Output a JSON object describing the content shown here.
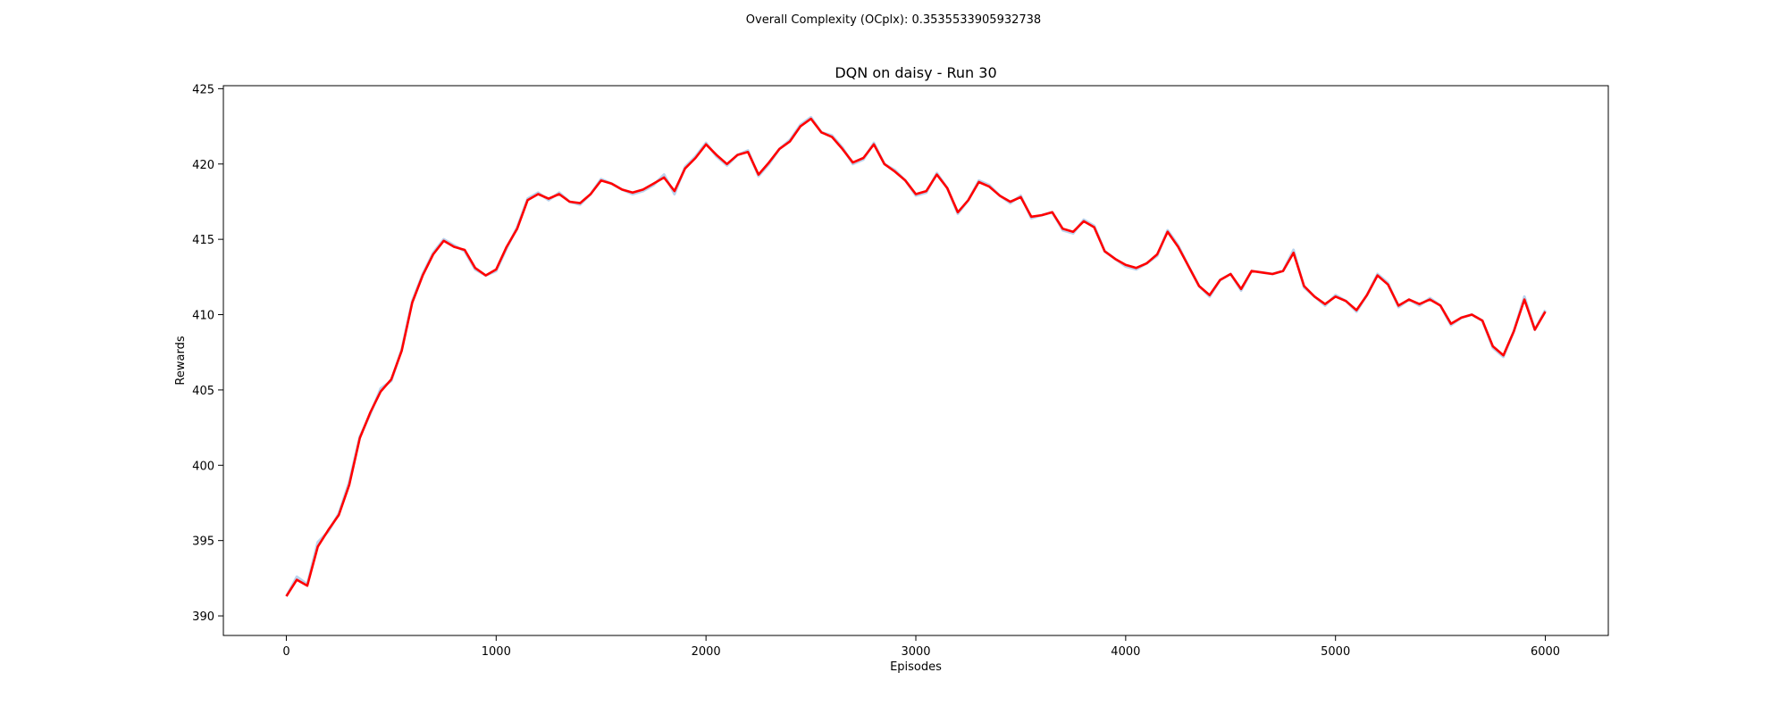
{
  "suptitle": "Overall Complexity (OCplx): 0.3535533905932738",
  "colors": {
    "suptitle": "#ff0000",
    "raw": "#a9c8e8",
    "smooth": "#ff0000",
    "axes": "#000000"
  },
  "chart_data": {
    "type": "line",
    "title": "DQN on daisy - Run 30",
    "xlabel": "Episodes",
    "ylabel": "Rewards",
    "xlim": [
      -300,
      6300
    ],
    "ylim": [
      388.7,
      425.2
    ],
    "xticks": [
      0,
      1000,
      2000,
      3000,
      4000,
      5000,
      6000
    ],
    "yticks": [
      390,
      395,
      400,
      405,
      410,
      415,
      420,
      425
    ],
    "grid": false,
    "series": [
      {
        "style": "raw",
        "x": [
          0,
          50,
          100,
          150,
          200,
          250,
          300,
          350,
          400,
          450,
          500,
          550,
          600,
          650,
          700,
          750,
          800,
          850,
          900,
          950,
          1000,
          1050,
          1100,
          1150,
          1200,
          1250,
          1300,
          1350,
          1400,
          1450,
          1500,
          1550,
          1600,
          1650,
          1700,
          1750,
          1800,
          1850,
          1900,
          1950,
          2000,
          2050,
          2100,
          2150,
          2200,
          2250,
          2300,
          2350,
          2400,
          2450,
          2500,
          2550,
          2600,
          2650,
          2700,
          2750,
          2800,
          2850,
          2900,
          2950,
          3000,
          3050,
          3100,
          3150,
          3200,
          3250,
          3300,
          3350,
          3400,
          3450,
          3500,
          3550,
          3600,
          3650,
          3700,
          3750,
          3800,
          3850,
          3900,
          3950,
          4000,
          4050,
          4100,
          4150,
          4200,
          4250,
          4300,
          4350,
          4400,
          4450,
          4500,
          4550,
          4600,
          4650,
          4700,
          4750,
          4800,
          4850,
          4900,
          4950,
          5000,
          5050,
          5100,
          5150,
          5200,
          5250,
          5300,
          5350,
          5400,
          5450,
          5500,
          5550,
          5600,
          5650,
          5700,
          5750,
          5800,
          5850,
          5900,
          5950,
          6000
        ],
        "y": [
          391.3,
          392.6,
          392.1,
          394.9,
          395.6,
          396.8,
          398.9,
          401.9,
          403.4,
          405.1,
          405.6,
          407.7,
          410.9,
          412.7,
          414.1,
          415.0,
          414.6,
          414.2,
          413.0,
          412.6,
          412.9,
          414.4,
          415.8,
          417.7,
          418.1,
          417.6,
          418.1,
          417.5,
          417.3,
          418.0,
          419.0,
          418.7,
          418.3,
          418.0,
          418.2,
          418.6,
          419.3,
          418.0,
          419.8,
          420.5,
          421.4,
          420.5,
          419.9,
          420.6,
          420.9,
          419.2,
          420.0,
          421.0,
          421.6,
          422.6,
          423.1,
          422.1,
          421.9,
          421.1,
          420.0,
          420.3,
          421.4,
          420.0,
          419.6,
          418.9,
          417.9,
          418.1,
          419.4,
          418.4,
          416.7,
          417.6,
          418.9,
          418.6,
          417.9,
          417.4,
          417.9,
          416.4,
          416.6,
          416.8,
          415.6,
          415.4,
          416.3,
          415.9,
          414.2,
          413.7,
          413.2,
          413.0,
          413.4,
          413.9,
          415.6,
          414.6,
          413.2,
          411.9,
          411.2,
          412.3,
          412.7,
          411.6,
          412.9,
          412.8,
          412.7,
          412.9,
          414.3,
          411.8,
          411.2,
          410.6,
          411.3,
          410.9,
          410.2,
          411.3,
          412.7,
          412.1,
          410.5,
          411.0,
          410.6,
          411.1,
          410.6,
          409.3,
          409.8,
          410.0,
          409.6,
          407.8,
          407.2,
          408.9,
          411.2,
          409.0,
          410.3
        ]
      },
      {
        "style": "smooth",
        "x": [
          0,
          50,
          100,
          150,
          200,
          250,
          300,
          350,
          400,
          450,
          500,
          550,
          600,
          650,
          700,
          750,
          800,
          850,
          900,
          950,
          1000,
          1050,
          1100,
          1150,
          1200,
          1250,
          1300,
          1350,
          1400,
          1450,
          1500,
          1550,
          1600,
          1650,
          1700,
          1750,
          1800,
          1850,
          1900,
          1950,
          2000,
          2050,
          2100,
          2150,
          2200,
          2250,
          2300,
          2350,
          2400,
          2450,
          2500,
          2550,
          2600,
          2650,
          2700,
          2750,
          2800,
          2850,
          2900,
          2950,
          3000,
          3050,
          3100,
          3150,
          3200,
          3250,
          3300,
          3350,
          3400,
          3450,
          3500,
          3550,
          3600,
          3650,
          3700,
          3750,
          3800,
          3850,
          3900,
          3950,
          4000,
          4050,
          4100,
          4150,
          4200,
          4250,
          4300,
          4350,
          4400,
          4450,
          4500,
          4550,
          4600,
          4650,
          4700,
          4750,
          4800,
          4850,
          4900,
          4950,
          5000,
          5050,
          5100,
          5150,
          5200,
          5250,
          5300,
          5350,
          5400,
          5450,
          5500,
          5550,
          5600,
          5650,
          5700,
          5750,
          5800,
          5850,
          5900,
          5950,
          6000
        ],
        "y": [
          391.3,
          392.4,
          392.0,
          394.6,
          395.7,
          396.7,
          398.7,
          401.8,
          403.5,
          404.9,
          405.7,
          407.6,
          410.8,
          412.6,
          414.0,
          414.9,
          414.5,
          414.3,
          413.1,
          412.6,
          413.0,
          414.5,
          415.7,
          417.6,
          418.0,
          417.7,
          418.0,
          417.5,
          417.4,
          418.0,
          418.9,
          418.7,
          418.3,
          418.1,
          418.3,
          418.7,
          419.1,
          418.2,
          419.7,
          420.4,
          421.3,
          420.6,
          420.0,
          420.6,
          420.8,
          419.3,
          420.1,
          421.0,
          421.5,
          422.5,
          423.0,
          422.1,
          421.8,
          421.0,
          420.1,
          420.4,
          421.3,
          420.0,
          419.5,
          418.9,
          418.0,
          418.2,
          419.3,
          418.4,
          416.8,
          417.6,
          418.8,
          418.5,
          417.9,
          417.5,
          417.8,
          416.5,
          416.6,
          416.8,
          415.7,
          415.5,
          416.2,
          415.8,
          414.2,
          413.7,
          413.3,
          413.1,
          413.4,
          414.0,
          415.5,
          414.5,
          413.2,
          411.9,
          411.3,
          412.3,
          412.7,
          411.7,
          412.9,
          412.8,
          412.7,
          412.9,
          414.1,
          411.9,
          411.2,
          410.7,
          411.2,
          410.9,
          410.3,
          411.3,
          412.6,
          412.0,
          410.6,
          411.0,
          410.7,
          411.0,
          410.6,
          409.4,
          409.8,
          410.0,
          409.6,
          407.9,
          407.3,
          408.9,
          411.0,
          409.0,
          410.2
        ]
      }
    ]
  }
}
